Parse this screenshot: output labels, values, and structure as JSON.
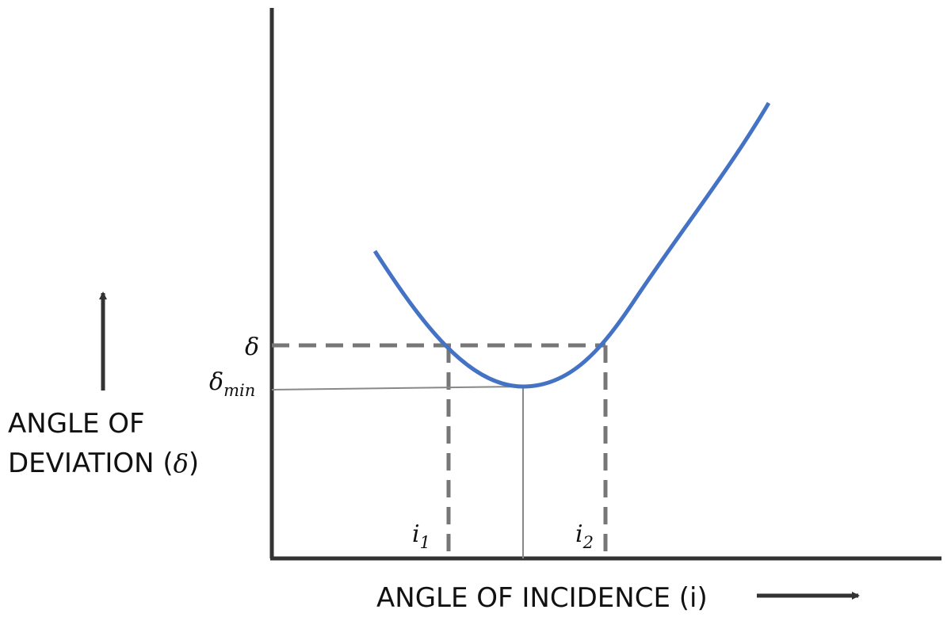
{
  "labels": {
    "delta": "δ",
    "delta_min": {
      "base": "δ",
      "sub": "min"
    },
    "i1": {
      "base": "i",
      "sub": "1"
    },
    "i2": {
      "base": "i",
      "sub": "2"
    }
  },
  "y_axis_label": {
    "line1": "ANGLE OF",
    "line2": "DEVIATION (",
    "symbol": "δ",
    "close": ")"
  },
  "x_axis_label": "ANGLE OF INCIDENCE (i)"
}
